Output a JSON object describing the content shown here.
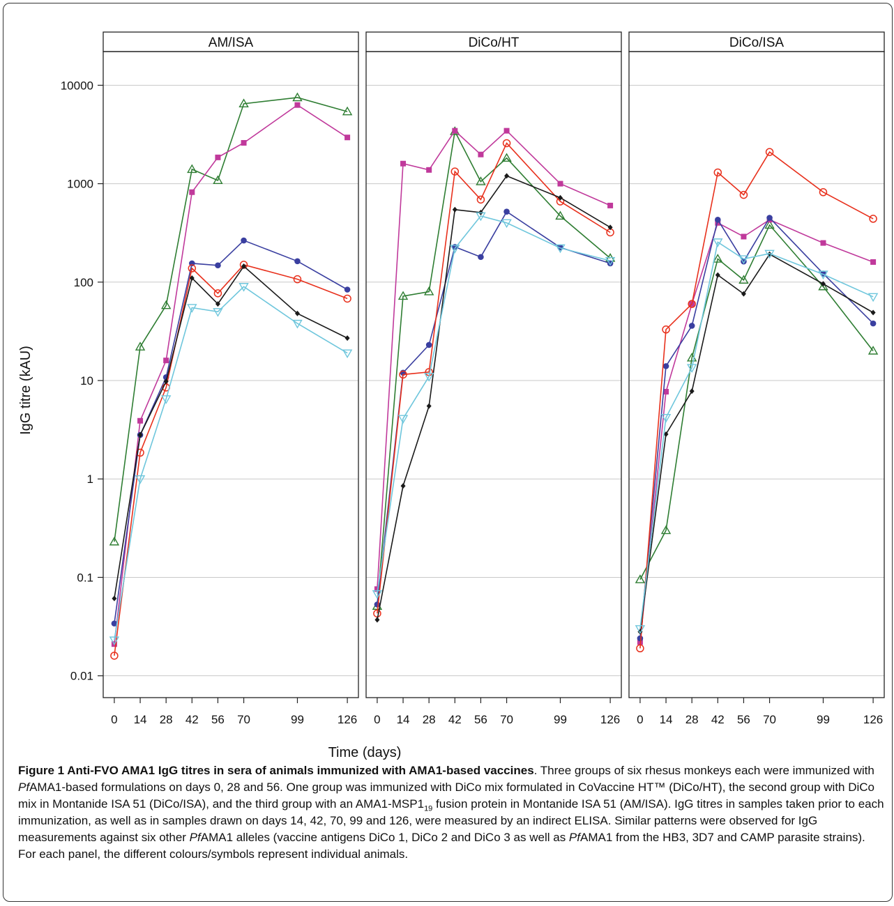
{
  "chart_data": {
    "type": "line",
    "ylabel": "IgG titre (kAU)",
    "xlabel": "Time (days)",
    "y_scale": "log10",
    "ylim": [
      0.006,
      22000
    ],
    "xlim": [
      -6,
      132
    ],
    "grid": "horizontal",
    "y_ticks": [
      0.01,
      0.1,
      1,
      10,
      100,
      1000,
      10000
    ],
    "y_tick_labels": [
      "0.01",
      "0.1",
      "1",
      "10",
      "100",
      "1000",
      "10000"
    ],
    "x_ticks": [
      0,
      14,
      28,
      42,
      56,
      70,
      99,
      126
    ],
    "x_tick_labels": [
      "0",
      "14",
      "28",
      "42",
      "56",
      "70",
      "99",
      "126"
    ],
    "animals": [
      {
        "color": "#2e7d32",
        "marker": "triangle-up-open"
      },
      {
        "color": "#c0399b",
        "marker": "square-filled"
      },
      {
        "color": "#3a3fa0",
        "marker": "circle-filled"
      },
      {
        "color": "#e8301c",
        "marker": "circle-open"
      },
      {
        "color": "#1a1a1a",
        "marker": "diamond-filled"
      },
      {
        "color": "#6ec6dc",
        "marker": "triangle-down-open"
      }
    ],
    "panels": [
      {
        "title": "AM/ISA",
        "series": [
          {
            "animal": 0,
            "x": [
              0,
              14,
              28,
              42,
              56,
              70,
              99,
              126
            ],
            "y": [
              0.23,
              22,
              58,
              1400,
              1080,
              6500,
              7500,
              5400
            ]
          },
          {
            "animal": 1,
            "x": [
              0,
              14,
              28,
              42,
              56,
              70,
              99,
              126
            ],
            "y": [
              0.021,
              3.9,
              16,
              820,
              1850,
              2600,
              6300,
              2950
            ]
          },
          {
            "animal": 2,
            "x": [
              0,
              14,
              28,
              42,
              56,
              70,
              99,
              126
            ],
            "y": [
              0.034,
              2.8,
              10.8,
              155,
              148,
              265,
              163,
              84
            ]
          },
          {
            "animal": 3,
            "x": [
              0,
              14,
              28,
              42,
              56,
              70,
              99,
              126
            ],
            "y": [
              0.016,
              1.85,
              8.5,
              138,
              77,
              150,
              107,
              68
            ]
          },
          {
            "animal": 4,
            "x": [
              0,
              14,
              28,
              42,
              56,
              70,
              99,
              126
            ],
            "y": [
              0.061,
              2.8,
              9.8,
              110,
              60,
              145,
              48,
              27
            ]
          },
          {
            "animal": 5,
            "x": [
              0,
              14,
              28,
              42,
              56,
              70,
              99,
              126
            ],
            "y": [
              0.023,
              1.0,
              6.5,
              55,
              50,
              90,
              38,
              19
            ]
          }
        ]
      },
      {
        "title": "DiCo/HT",
        "series": [
          {
            "animal": 0,
            "x": [
              0,
              14,
              28,
              42,
              56,
              70,
              99,
              126
            ],
            "y": [
              0.051,
              72,
              80,
              3400,
              1050,
              1820,
              470,
              175
            ]
          },
          {
            "animal": 1,
            "x": [
              0,
              14,
              28,
              42,
              56,
              70,
              99,
              126
            ],
            "y": [
              0.076,
              1600,
              1380,
              3450,
              1980,
              3450,
              1000,
              600
            ]
          },
          {
            "animal": 2,
            "x": [
              0,
              14,
              28,
              42,
              56,
              70,
              99,
              126
            ],
            "y": [
              0.053,
              12,
              23,
              228,
              180,
              520,
              225,
              155
            ]
          },
          {
            "animal": 3,
            "x": [
              0,
              14,
              28,
              42,
              56,
              70,
              99,
              126
            ],
            "y": [
              0.043,
              11.5,
              12.2,
              1330,
              690,
              2580,
              660,
              320
            ]
          },
          {
            "animal": 4,
            "x": [
              0,
              14,
              28,
              42,
              56,
              70,
              99,
              126
            ],
            "y": [
              0.037,
              0.85,
              5.5,
              545,
              510,
              1200,
              720,
              360
            ]
          },
          {
            "animal": 5,
            "x": [
              0,
              14,
              28,
              42,
              56,
              70,
              99,
              126
            ],
            "y": [
              0.068,
              4.1,
              11,
              220,
              470,
              400,
              222,
              165
            ]
          }
        ]
      },
      {
        "title": "DiCo/ISA",
        "series": [
          {
            "animal": 0,
            "x": [
              0,
              14,
              28,
              42,
              56,
              70,
              99,
              126
            ],
            "y": [
              0.095,
              0.3,
              17,
              172,
              105,
              380,
              90,
              20
            ]
          },
          {
            "animal": 1,
            "x": [
              0,
              14,
              28,
              42,
              56,
              70,
              99,
              126
            ],
            "y": [
              0.022,
              7.7,
              60,
              400,
              290,
              430,
              250,
              160
            ]
          },
          {
            "animal": 2,
            "x": [
              0,
              14,
              28,
              42,
              56,
              70,
              99,
              126
            ],
            "y": [
              0.024,
              14,
              36,
              430,
              162,
              450,
              122,
              38
            ]
          },
          {
            "animal": 3,
            "x": [
              0,
              14,
              28,
              42,
              56,
              70,
              99,
              126
            ],
            "y": [
              0.019,
              33,
              60,
              1300,
              770,
              2100,
              820,
              440
            ]
          },
          {
            "animal": 4,
            "x": [
              0,
              14,
              28,
              42,
              56,
              70,
              99,
              126
            ],
            "y": [
              0.028,
              2.85,
              7.8,
              118,
              76,
              192,
              96,
              49
            ]
          },
          {
            "animal": 5,
            "x": [
              0,
              14,
              28,
              42,
              56,
              70,
              99,
              126
            ],
            "y": [
              0.03,
              4.2,
              13.5,
              255,
              172,
              195,
              120,
              71
            ]
          }
        ]
      }
    ]
  },
  "caption": {
    "title": "Figure 1 Anti-FVO AMA1 IgG titres in sera of animals immunized with AMA1-based vaccines",
    "p1": ". Three groups of six rhesus monkeys each were immunized with ",
    "pf1": "Pf",
    "p2": "AMA1-based formulations on days 0, 28 and 56. One group was immunized with DiCo mix formulated in CoVaccine HT™ (DiCo/HT), the second group with DiCo mix in Montanide ISA 51 (DiCo/ISA), and the third group with an AMA1-MSP1",
    "sub19": "19",
    "p3": " fusion protein in Montanide ISA 51 (AM/ISA). IgG titres in samples taken prior to each immunization, as well as in samples drawn on days 14, 42, 70, 99 and 126, were measured by an indirect ELISA. Similar patterns were observed for IgG measurements against six other ",
    "pf2": "Pf",
    "p4": "AMA1 alleles (vaccine antigens DiCo 1, DiCo 2 and DiCo 3 as well as ",
    "pf3": "Pf",
    "p5": "AMA1 from the HB3, 3D7 and CAMP parasite strains). For each panel, the different colours/symbols represent individual animals."
  }
}
